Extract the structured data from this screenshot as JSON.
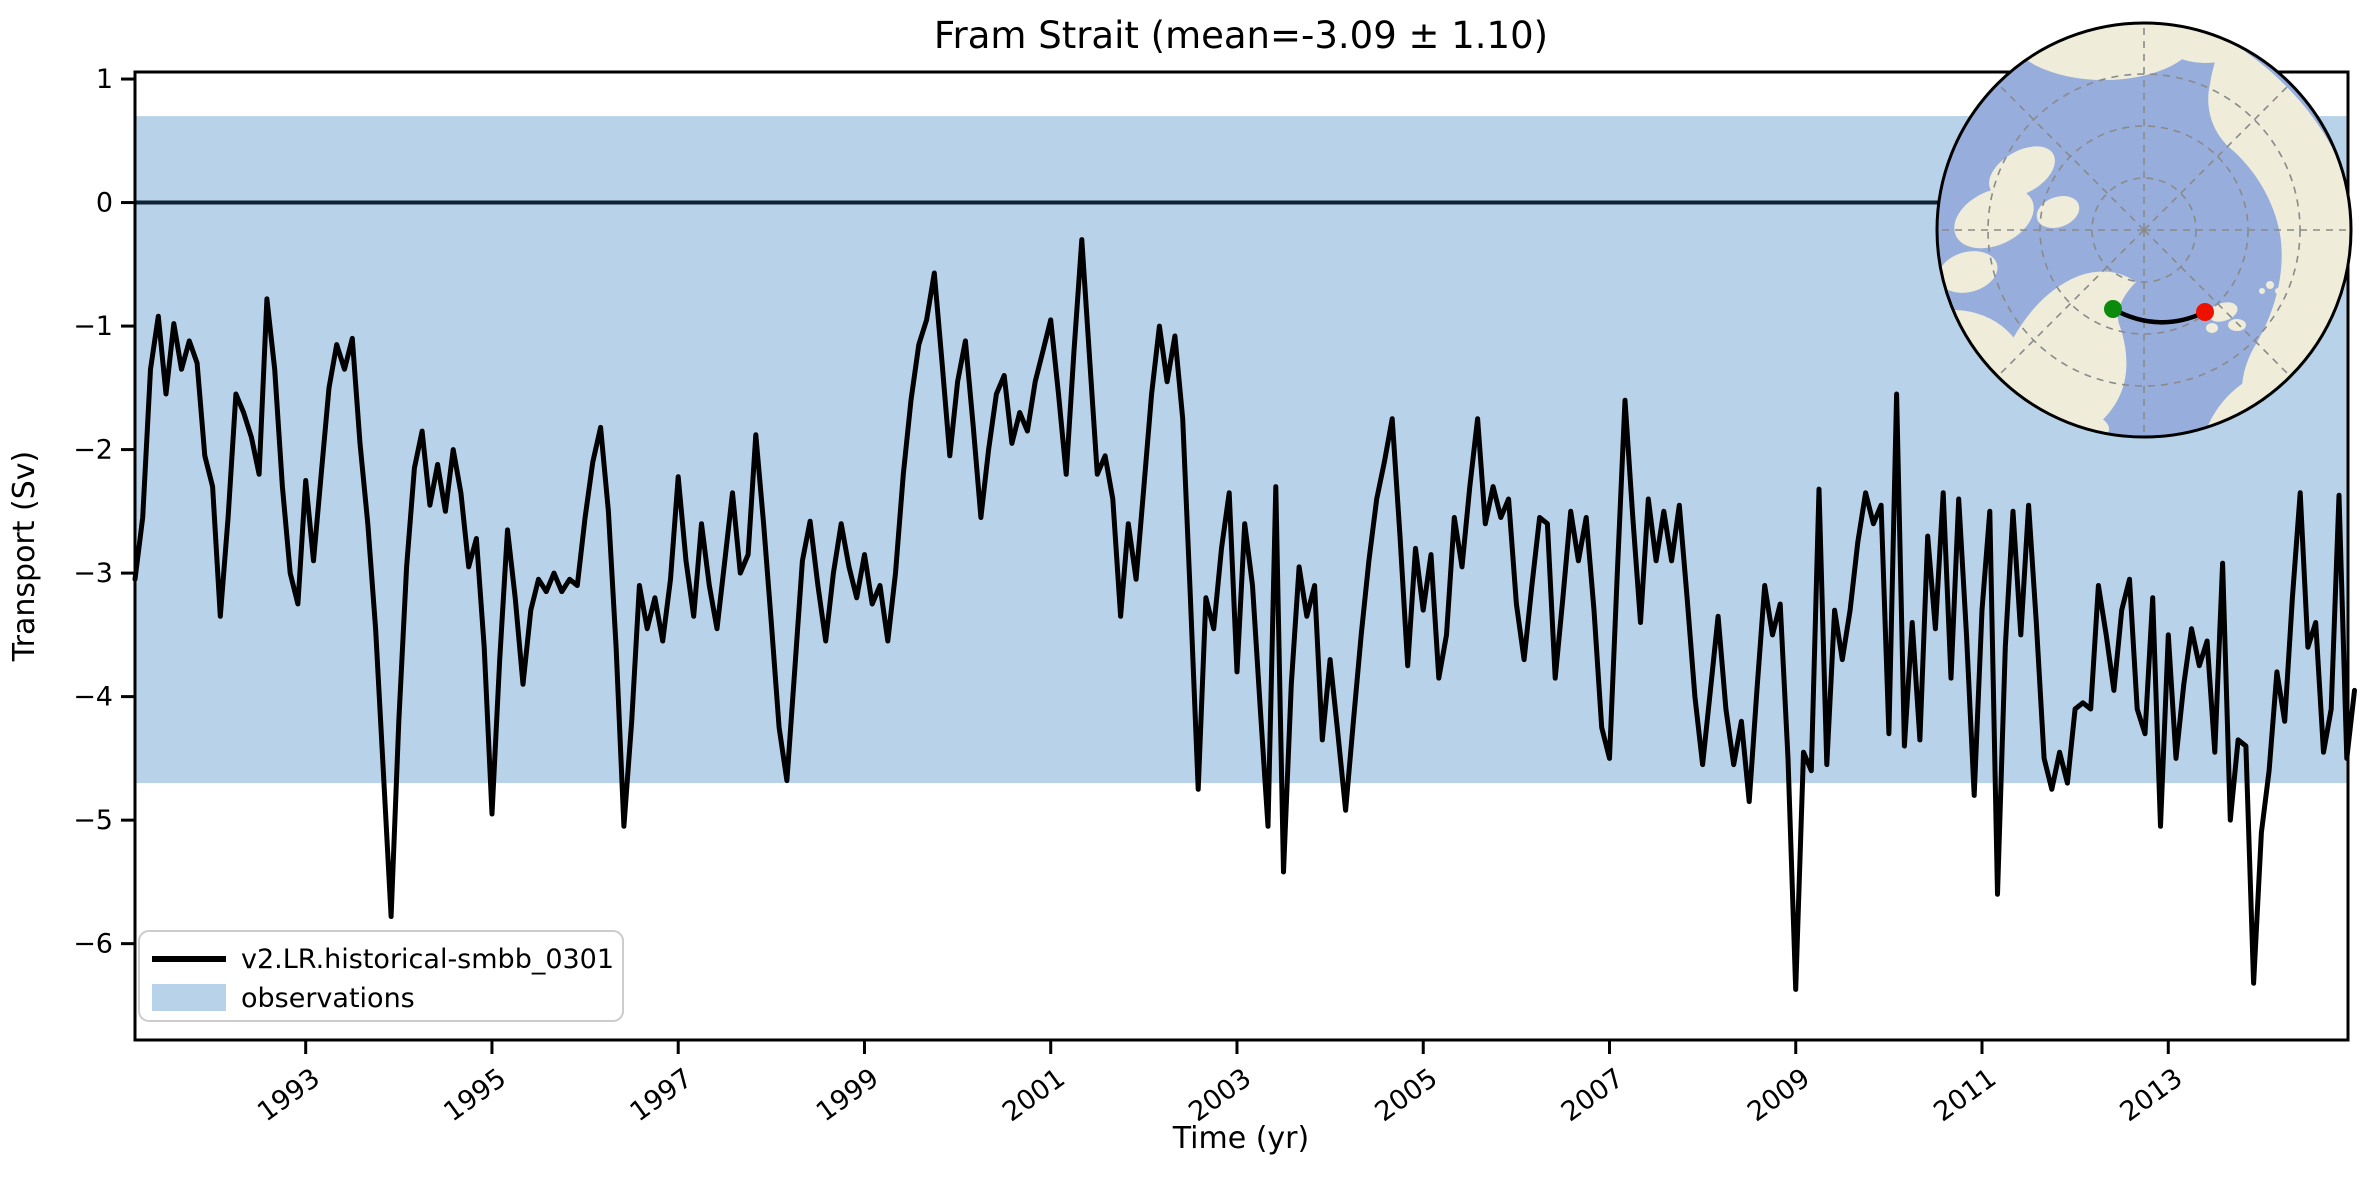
{
  "title": "Fram Strait (mean=-3.09 ± 1.10)",
  "legend": {
    "series_label": "v2.LR.historical-smbb_0301",
    "observations_label": "observations"
  },
  "colors": {
    "series_line": "#000000",
    "observations_band": "#b8d3e9",
    "zero_line": "#0d2233",
    "spine": "#000000",
    "legend_border": "#cccccc",
    "map_ocean": "#97aedd",
    "map_land": "#efecda",
    "map_graticule": "#8a8a8a",
    "map_section_line": "#000000",
    "start_marker": "#0b8a0b",
    "end_marker": "#ee1100"
  },
  "chart_data": {
    "type": "line",
    "title": "Fram Strait (mean=-3.09 ± 1.10)",
    "xlabel": "Time (yr)",
    "ylabel": "Transport (Sv)",
    "xlim": [
      1991.167,
      2014.93
    ],
    "ylim": [
      -6.78,
      1.057
    ],
    "grid": false,
    "legend_position": "lower left",
    "x_ticks": [
      1993,
      1995,
      1997,
      1999,
      2001,
      2003,
      2005,
      2007,
      2009,
      2011,
      2013
    ],
    "y_ticks": [
      1,
      0,
      -1,
      -2,
      -3,
      -4,
      -5,
      -6
    ],
    "y_tick_labels": [
      "1",
      "0",
      "−1",
      "−2",
      "−3",
      "−4",
      "−5",
      "−6"
    ],
    "observations_band": {
      "label": "observations",
      "min": -4.7,
      "max": 0.7,
      "mean": -2.0,
      "uncertainty": 2.7
    },
    "zero_line": 0,
    "series": [
      {
        "name": "v2.LR.historical-smbb_0301",
        "x_start": 1991.1667,
        "x_step_years": 0.083333,
        "mean": -3.09,
        "std": 1.1,
        "values": [
          -3.05,
          -2.55,
          -1.35,
          -0.92,
          -1.55,
          -0.98,
          -1.35,
          -1.12,
          -1.3,
          -2.05,
          -2.3,
          -3.35,
          -2.55,
          -1.55,
          -1.7,
          -1.9,
          -2.2,
          -0.78,
          -1.35,
          -2.3,
          -3.0,
          -3.25,
          -2.25,
          -2.9,
          -2.2,
          -1.5,
          -1.15,
          -1.35,
          -1.1,
          -1.95,
          -2.6,
          -3.45,
          -4.6,
          -5.78,
          -4.2,
          -2.95,
          -2.15,
          -1.85,
          -2.45,
          -2.12,
          -2.5,
          -2.0,
          -2.35,
          -2.95,
          -2.72,
          -3.6,
          -4.95,
          -3.7,
          -2.65,
          -3.2,
          -3.9,
          -3.3,
          -3.05,
          -3.15,
          -3.0,
          -3.15,
          -3.05,
          -3.1,
          -2.55,
          -2.1,
          -1.82,
          -2.5,
          -3.6,
          -5.05,
          -4.2,
          -3.1,
          -3.45,
          -3.2,
          -3.55,
          -3.05,
          -2.22,
          -2.9,
          -3.35,
          -2.6,
          -3.1,
          -3.45,
          -2.9,
          -2.35,
          -3.0,
          -2.85,
          -1.88,
          -2.6,
          -3.4,
          -4.25,
          -4.68,
          -3.8,
          -2.9,
          -2.58,
          -3.1,
          -3.55,
          -3.0,
          -2.6,
          -2.95,
          -3.2,
          -2.85,
          -3.25,
          -3.1,
          -3.55,
          -3.0,
          -2.2,
          -1.6,
          -1.15,
          -0.95,
          -0.57,
          -1.3,
          -2.05,
          -1.45,
          -1.12,
          -1.8,
          -2.55,
          -2.0,
          -1.55,
          -1.4,
          -1.95,
          -1.7,
          -1.85,
          -1.45,
          -1.2,
          -0.95,
          -1.55,
          -2.2,
          -1.2,
          -0.3,
          -1.25,
          -2.2,
          -2.05,
          -2.4,
          -3.35,
          -2.6,
          -3.05,
          -2.3,
          -1.55,
          -1.0,
          -1.45,
          -1.08,
          -1.75,
          -3.2,
          -4.75,
          -3.2,
          -3.45,
          -2.8,
          -2.35,
          -3.8,
          -2.6,
          -3.1,
          -4.1,
          -5.05,
          -2.3,
          -5.42,
          -3.9,
          -2.95,
          -3.35,
          -3.1,
          -4.35,
          -3.7,
          -4.3,
          -4.92,
          -4.2,
          -3.5,
          -2.9,
          -2.4,
          -2.1,
          -1.75,
          -2.7,
          -3.75,
          -2.8,
          -3.3,
          -2.85,
          -3.85,
          -3.5,
          -2.55,
          -2.95,
          -2.3,
          -1.75,
          -2.6,
          -2.3,
          -2.55,
          -2.4,
          -3.25,
          -3.7,
          -3.1,
          -2.55,
          -2.6,
          -3.85,
          -3.2,
          -2.5,
          -2.9,
          -2.55,
          -3.3,
          -4.25,
          -4.5,
          -3.0,
          -1.6,
          -2.55,
          -3.4,
          -2.4,
          -2.9,
          -2.5,
          -2.9,
          -2.45,
          -3.2,
          -4.0,
          -4.55,
          -3.95,
          -3.35,
          -4.1,
          -4.55,
          -4.2,
          -4.85,
          -3.95,
          -3.1,
          -3.5,
          -3.25,
          -4.5,
          -6.37,
          -4.45,
          -4.6,
          -2.32,
          -4.55,
          -3.3,
          -3.7,
          -3.3,
          -2.75,
          -2.35,
          -2.6,
          -2.45,
          -4.3,
          -1.55,
          -4.4,
          -3.4,
          -4.35,
          -2.7,
          -3.45,
          -2.35,
          -3.85,
          -2.4,
          -3.5,
          -4.8,
          -3.3,
          -2.5,
          -5.6,
          -3.6,
          -2.5,
          -3.5,
          -2.45,
          -3.4,
          -4.5,
          -4.75,
          -4.45,
          -4.7,
          -4.1,
          -4.05,
          -4.1,
          -3.1,
          -3.5,
          -3.95,
          -3.3,
          -3.05,
          -4.1,
          -4.3,
          -3.2,
          -5.05,
          -3.5,
          -4.5,
          -3.9,
          -3.45,
          -3.75,
          -3.55,
          -4.45,
          -2.92,
          -5.0,
          -4.35,
          -4.4,
          -6.32,
          -5.1,
          -4.6,
          -3.8,
          -4.2,
          -3.2,
          -2.35,
          -3.6,
          -3.4,
          -4.45,
          -4.1,
          -2.37,
          -4.5,
          -3.95
        ]
      }
    ]
  },
  "inset_map": {
    "projection": "north-polar",
    "start_marker_color": "#0b8a0b",
    "end_marker_color": "#ee1100"
  }
}
